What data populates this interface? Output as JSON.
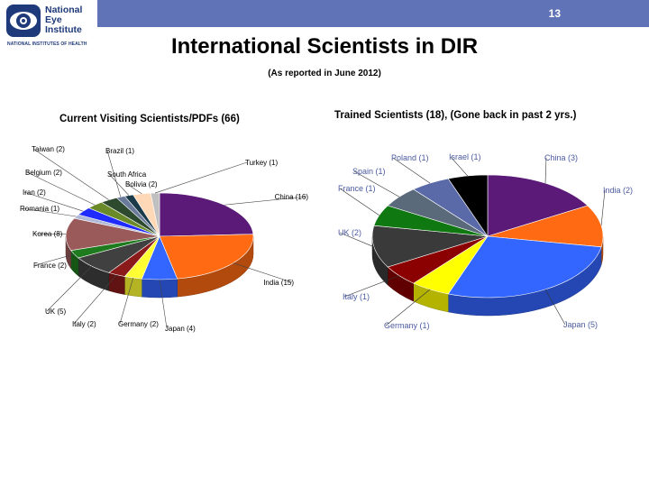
{
  "header": {
    "slide_number": "13",
    "logo_lines": [
      "National",
      "Eye",
      "Institute"
    ],
    "logo_subtext": "NATIONAL INSTITUTES OF HEALTH",
    "bar_color": "#6073b6"
  },
  "title": "International Scientists in DIR",
  "subtitle": "(As reported in June 2012)",
  "chart_data": [
    {
      "type": "pie",
      "title": "Current Visiting Scientists/PDFs (66)",
      "slices": [
        {
          "label": "China (16)",
          "value": 16,
          "color": "#5b1a78"
        },
        {
          "label": "India (15)",
          "value": 15,
          "color": "#ff6a13"
        },
        {
          "label": "Japan (4)",
          "value": 4,
          "color": "#3366ff"
        },
        {
          "label": "Germany (2)",
          "value": 2,
          "color": "#ffff33"
        },
        {
          "label": "Italy (2)",
          "value": 2,
          "color": "#8b1a1a"
        },
        {
          "label": "UK (5)",
          "value": 5,
          "color": "#404040"
        },
        {
          "label": "France (2)",
          "value": 2,
          "color": "#1e7b1e"
        },
        {
          "label": "Korea (8)",
          "value": 8,
          "color": "#9a5a5a"
        },
        {
          "label": "Romania (1)",
          "value": 1,
          "color": "#b0b8d8"
        },
        {
          "label": "Iran (2)",
          "value": 2,
          "color": "#1f2bff"
        },
        {
          "label": "Belgium (2)",
          "value": 2,
          "color": "#6a8a2a"
        },
        {
          "label": "Taiwan (2)",
          "value": 2,
          "color": "#2e4a2e"
        },
        {
          "label": "Brazil (1)",
          "value": 1,
          "color": "#6a7a9a"
        },
        {
          "label": "South Africa",
          "value": 1,
          "color": "#1a3a4a"
        },
        {
          "label": "Bolivia (2)",
          "value": 2,
          "color": "#ffd8b8"
        },
        {
          "label": "Turkey (1)",
          "value": 1,
          "color": "#c0c0c0"
        }
      ]
    },
    {
      "type": "pie",
      "title": "Trained Scientists (18), (Gone back in past 2 yrs.)",
      "slices": [
        {
          "label": "China (3)",
          "value": 3,
          "color": "#5b1a78"
        },
        {
          "label": "India (2)",
          "value": 2,
          "color": "#ff6a13"
        },
        {
          "label": "Japan (5)",
          "value": 5,
          "color": "#3366ff"
        },
        {
          "label": "Germany (1)",
          "value": 1,
          "color": "#ffff00"
        },
        {
          "label": "Italy (1)",
          "value": 1,
          "color": "#8b0000"
        },
        {
          "label": "UK (2)",
          "value": 2,
          "color": "#3a3a3a"
        },
        {
          "label": "France (1)",
          "value": 1,
          "color": "#107810"
        },
        {
          "label": "Spain (1)",
          "value": 1,
          "color": "#5a6a7a"
        },
        {
          "label": "Poland (1)",
          "value": 1,
          "color": "#5a6aa8"
        },
        {
          "label": "Israel (1)",
          "value": 1,
          "color": "#000000"
        }
      ]
    }
  ]
}
